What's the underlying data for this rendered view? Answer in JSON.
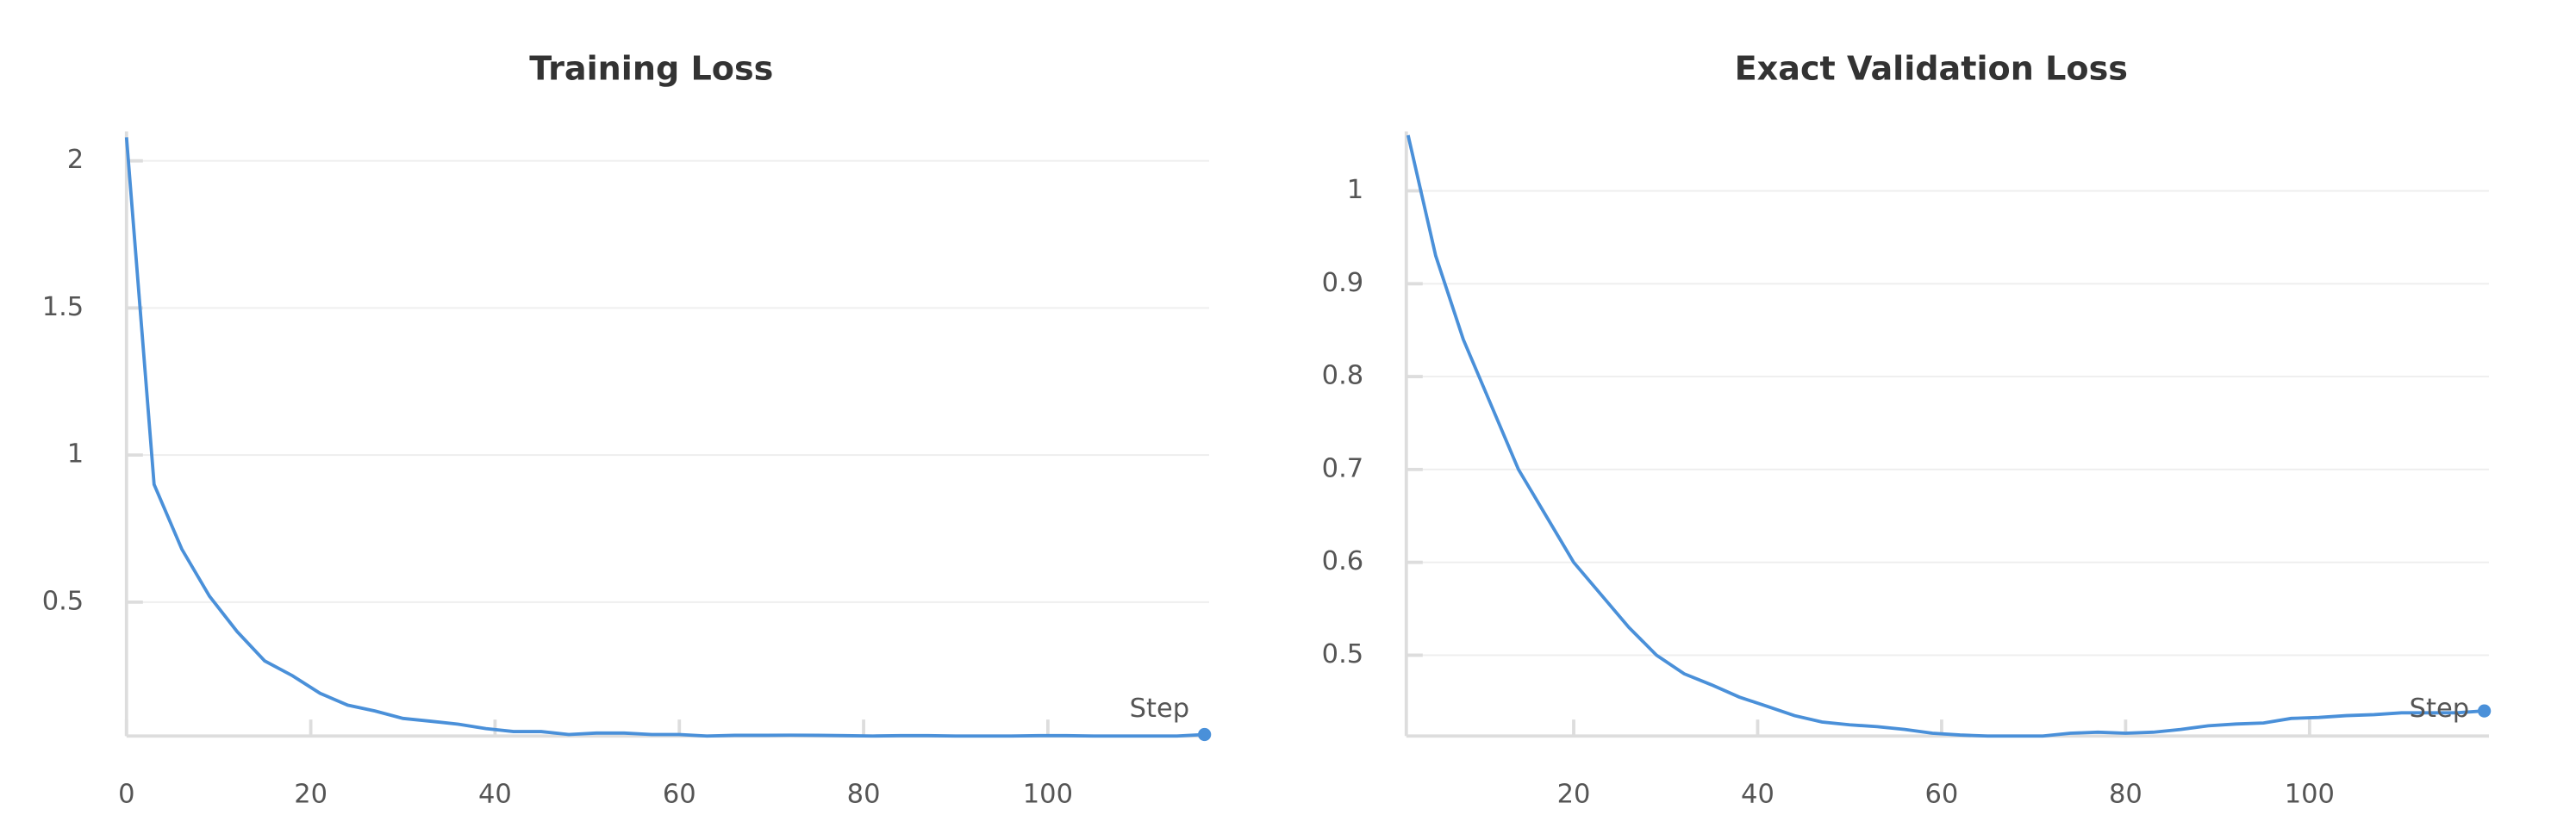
{
  "chart_data": [
    {
      "type": "line",
      "title": "Training Loss",
      "x_label": "Step",
      "color": "#4a90d9",
      "grid": true,
      "xlim": [
        0,
        117.5
      ],
      "ylim": [
        0.045,
        2.1
      ],
      "xticks": [
        0,
        20,
        40,
        60,
        80,
        100
      ],
      "yticks": [
        0.5,
        1,
        1.5,
        2
      ],
      "x": [
        0,
        3,
        6,
        9,
        12,
        15,
        18,
        21,
        24,
        27,
        30,
        33,
        36,
        39,
        42,
        45,
        48,
        51,
        54,
        57,
        60,
        63,
        66,
        69,
        72,
        75,
        78,
        81,
        84,
        87,
        90,
        93,
        96,
        99,
        102,
        105,
        108,
        111,
        114,
        117
      ],
      "values": [
        2.08,
        0.9,
        0.68,
        0.52,
        0.4,
        0.3,
        0.25,
        0.19,
        0.15,
        0.13,
        0.105,
        0.095,
        0.085,
        0.07,
        0.06,
        0.06,
        0.05,
        0.055,
        0.055,
        0.05,
        0.05,
        0.045,
        0.047,
        0.047,
        0.048,
        0.047,
        0.046,
        0.045,
        0.046,
        0.046,
        0.045,
        0.045,
        0.045,
        0.046,
        0.046,
        0.045,
        0.045,
        0.045,
        0.045,
        0.05
      ]
    },
    {
      "type": "line",
      "title": "Exact Validation Loss",
      "x_label": "Step",
      "color": "#4a90d9",
      "grid": true,
      "xlim": [
        1.8,
        119.5
      ],
      "ylim": [
        0.413,
        1.064
      ],
      "xticks": [
        20,
        40,
        60,
        80,
        100
      ],
      "yticks": [
        0.5,
        0.6,
        0.7,
        0.8,
        0.9,
        1
      ],
      "x": [
        2,
        5,
        8,
        11,
        14,
        17,
        20,
        23,
        26,
        29,
        32,
        35,
        38,
        41,
        44,
        47,
        50,
        53,
        56,
        59,
        62,
        65,
        68,
        71,
        74,
        77,
        80,
        83,
        86,
        89,
        92,
        95,
        98,
        101,
        104,
        107,
        110,
        113,
        116,
        119
      ],
      "values": [
        1.06,
        0.93,
        0.84,
        0.77,
        0.7,
        0.65,
        0.6,
        0.565,
        0.53,
        0.5,
        0.48,
        0.468,
        0.455,
        0.445,
        0.435,
        0.428,
        0.425,
        0.423,
        0.42,
        0.416,
        0.414,
        0.413,
        0.413,
        0.413,
        0.416,
        0.417,
        0.416,
        0.417,
        0.42,
        0.424,
        0.426,
        0.427,
        0.432,
        0.433,
        0.435,
        0.436,
        0.438,
        0.438,
        0.438,
        0.44
      ]
    }
  ]
}
